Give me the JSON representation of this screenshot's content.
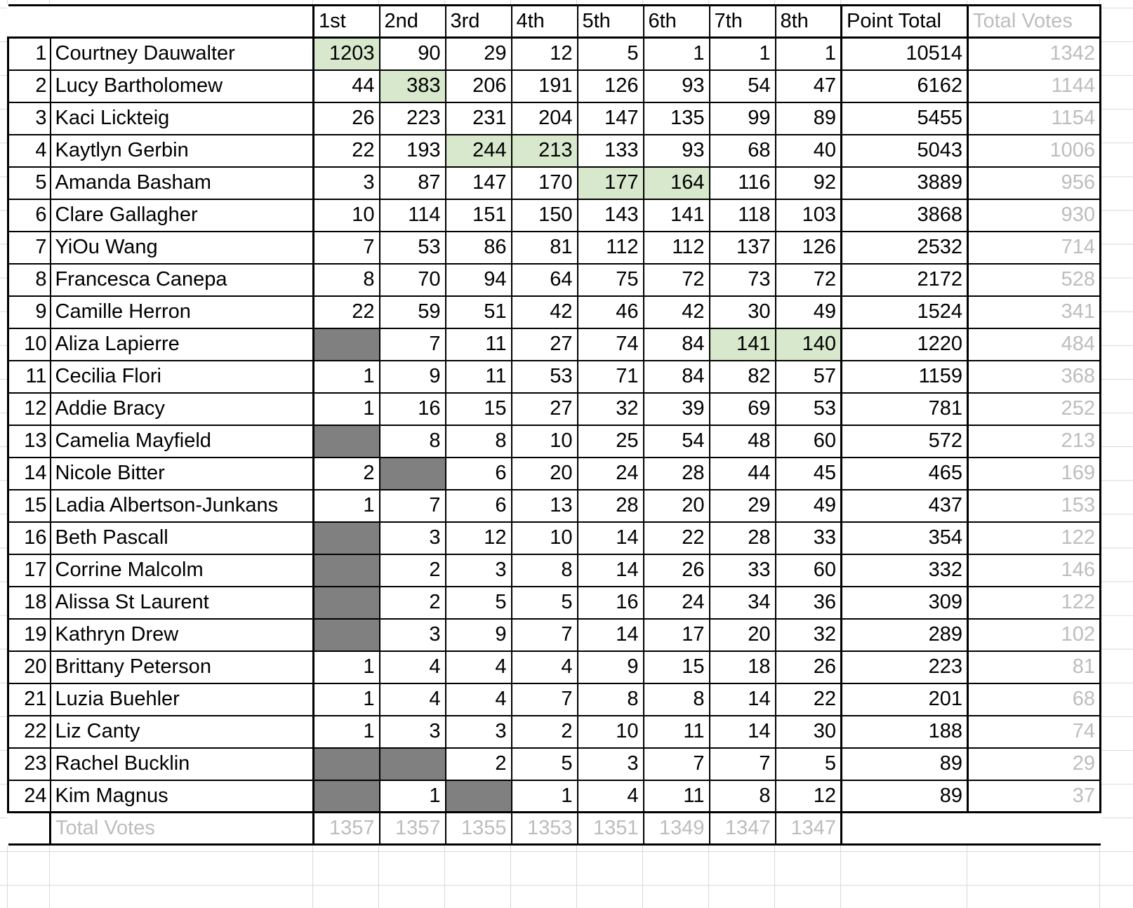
{
  "header": {
    "columns": [
      "1st",
      "2nd",
      "3rd",
      "4th",
      "5th",
      "6th",
      "7th",
      "8th"
    ],
    "point_total": "Point Total",
    "total_votes": "Total Votes"
  },
  "rows": [
    {
      "rank": "1",
      "name": "Courtney Dauwalter",
      "votes": [
        1203,
        90,
        29,
        12,
        5,
        1,
        1,
        1
      ],
      "highlight": [
        0
      ],
      "point_total": 10514,
      "total_votes": 1342
    },
    {
      "rank": "2",
      "name": "Lucy Bartholomew",
      "votes": [
        44,
        383,
        206,
        191,
        126,
        93,
        54,
        47
      ],
      "highlight": [
        1
      ],
      "point_total": 6162,
      "total_votes": 1144
    },
    {
      "rank": "3",
      "name": "Kaci Lickteig",
      "votes": [
        26,
        223,
        231,
        204,
        147,
        135,
        99,
        89
      ],
      "highlight": [],
      "point_total": 5455,
      "total_votes": 1154
    },
    {
      "rank": "4",
      "name": "Kaytlyn Gerbin",
      "votes": [
        22,
        193,
        244,
        213,
        133,
        93,
        68,
        40
      ],
      "highlight": [
        2,
        3
      ],
      "point_total": 5043,
      "total_votes": 1006
    },
    {
      "rank": "5",
      "name": "Amanda Basham",
      "votes": [
        3,
        87,
        147,
        170,
        177,
        164,
        116,
        92
      ],
      "highlight": [
        4,
        5
      ],
      "point_total": 3889,
      "total_votes": 956
    },
    {
      "rank": "6",
      "name": "Clare Gallagher",
      "votes": [
        10,
        114,
        151,
        150,
        143,
        141,
        118,
        103
      ],
      "highlight": [],
      "point_total": 3868,
      "total_votes": 930
    },
    {
      "rank": "7",
      "name": "YiOu Wang",
      "votes": [
        7,
        53,
        86,
        81,
        112,
        112,
        137,
        126
      ],
      "highlight": [],
      "point_total": 2532,
      "total_votes": 714
    },
    {
      "rank": "8",
      "name": "Francesca Canepa",
      "votes": [
        8,
        70,
        94,
        64,
        75,
        72,
        73,
        72
      ],
      "highlight": [],
      "point_total": 2172,
      "total_votes": 528
    },
    {
      "rank": "9",
      "name": "Camille Herron",
      "votes": [
        22,
        59,
        51,
        42,
        46,
        42,
        30,
        49
      ],
      "highlight": [],
      "point_total": 1524,
      "total_votes": 341
    },
    {
      "rank": "10",
      "name": "Aliza Lapierre",
      "votes": [
        null,
        7,
        11,
        27,
        74,
        84,
        141,
        140
      ],
      "highlight": [
        6,
        7
      ],
      "point_total": 1220,
      "total_votes": 484
    },
    {
      "rank": "11",
      "name": "Cecilia Flori",
      "votes": [
        1,
        9,
        11,
        53,
        71,
        84,
        82,
        57
      ],
      "highlight": [],
      "point_total": 1159,
      "total_votes": 368
    },
    {
      "rank": "12",
      "name": "Addie Bracy",
      "votes": [
        1,
        16,
        15,
        27,
        32,
        39,
        69,
        53
      ],
      "highlight": [],
      "point_total": 781,
      "total_votes": 252
    },
    {
      "rank": "13",
      "name": "Camelia Mayfield",
      "votes": [
        null,
        8,
        8,
        10,
        25,
        54,
        48,
        60
      ],
      "highlight": [],
      "point_total": 572,
      "total_votes": 213
    },
    {
      "rank": "14",
      "name": "Nicole Bitter",
      "votes": [
        2,
        null,
        6,
        20,
        24,
        28,
        44,
        45
      ],
      "highlight": [],
      "point_total": 465,
      "total_votes": 169
    },
    {
      "rank": "15",
      "name": "Ladia Albertson-Junkans",
      "votes": [
        1,
        7,
        6,
        13,
        28,
        20,
        29,
        49
      ],
      "highlight": [],
      "point_total": 437,
      "total_votes": 153
    },
    {
      "rank": "16",
      "name": "Beth Pascall",
      "votes": [
        null,
        3,
        12,
        10,
        14,
        22,
        28,
        33
      ],
      "highlight": [],
      "point_total": 354,
      "total_votes": 122
    },
    {
      "rank": "17",
      "name": "Corrine Malcolm",
      "votes": [
        null,
        2,
        3,
        8,
        14,
        26,
        33,
        60
      ],
      "highlight": [],
      "point_total": 332,
      "total_votes": 146
    },
    {
      "rank": "18",
      "name": "Alissa St Laurent",
      "votes": [
        null,
        2,
        5,
        5,
        16,
        24,
        34,
        36
      ],
      "highlight": [],
      "point_total": 309,
      "total_votes": 122
    },
    {
      "rank": "19",
      "name": "Kathryn Drew",
      "votes": [
        null,
        3,
        9,
        7,
        14,
        17,
        20,
        32
      ],
      "highlight": [],
      "point_total": 289,
      "total_votes": 102
    },
    {
      "rank": "20",
      "name": "Brittany Peterson",
      "votes": [
        1,
        4,
        4,
        4,
        9,
        15,
        18,
        26
      ],
      "highlight": [],
      "point_total": 223,
      "total_votes": 81
    },
    {
      "rank": "21",
      "name": "Luzia Buehler",
      "votes": [
        1,
        4,
        4,
        7,
        8,
        8,
        14,
        22
      ],
      "highlight": [],
      "point_total": 201,
      "total_votes": 68
    },
    {
      "rank": "22",
      "name": "Liz Canty",
      "votes": [
        1,
        3,
        3,
        2,
        10,
        11,
        14,
        30
      ],
      "highlight": [],
      "point_total": 188,
      "total_votes": 74
    },
    {
      "rank": "23",
      "name": "Rachel Bucklin",
      "votes": [
        null,
        null,
        2,
        5,
        3,
        7,
        7,
        5
      ],
      "highlight": [],
      "point_total": 89,
      "total_votes": 29
    },
    {
      "rank": "24",
      "name": "Kim Magnus",
      "votes": [
        null,
        1,
        null,
        1,
        4,
        11,
        8,
        12
      ],
      "highlight": [],
      "point_total": 89,
      "total_votes": 37
    }
  ],
  "footer": {
    "label": "Total Votes",
    "values": [
      1357,
      1357,
      1355,
      1353,
      1351,
      1349,
      1347,
      1347
    ]
  },
  "colors": {
    "highlight": "#d8e8cc",
    "blank": "#808080",
    "faded_text": "#bdbdbd"
  }
}
